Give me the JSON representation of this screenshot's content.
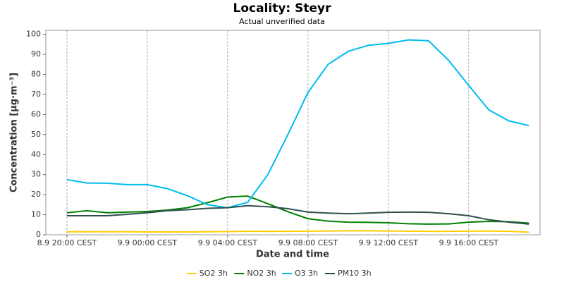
{
  "chart_data": {
    "type": "line",
    "title": "Locality: Steyr",
    "subtitle": "Actual unverified data",
    "x_label": "Date and time",
    "y_label": "Concentration [µg·m⁻³]",
    "x": [
      0,
      1,
      2,
      3,
      4,
      5,
      6,
      7,
      8,
      9,
      10,
      11,
      12,
      13,
      14,
      15,
      16,
      17,
      18,
      19,
      20,
      21,
      22,
      23
    ],
    "xlim": [
      -1.05,
      23.55
    ],
    "xticks": [
      {
        "value": 0,
        "label": "8.9 20:00 CEST"
      },
      {
        "value": 4,
        "label": "9.9 00:00 CEST"
      },
      {
        "value": 8,
        "label": "9.9 04:00 CEST"
      },
      {
        "value": 12,
        "label": "9.9 08:00 CEST"
      },
      {
        "value": 16,
        "label": "9.9 12:00 CEST"
      },
      {
        "value": 20,
        "label": "9.9 16:00 CEST"
      }
    ],
    "ylim": [
      0,
      102
    ],
    "yticks": [
      0,
      10,
      20,
      30,
      40,
      50,
      60,
      70,
      80,
      90,
      100
    ],
    "grid": "x",
    "legend": "bottom",
    "series": [
      {
        "name": "SO2 3h",
        "color": "#ffcc00",
        "values": [
          1.5,
          1.5,
          1.5,
          1.5,
          1.4,
          1.4,
          1.4,
          1.5,
          1.6,
          1.7,
          1.7,
          1.7,
          1.8,
          1.9,
          2,
          2,
          1.9,
          1.8,
          1.7,
          1.7,
          1.8,
          1.9,
          1.7,
          1.3
        ]
      },
      {
        "name": "NO2 3h",
        "color": "#008000",
        "values": [
          11,
          12,
          11,
          11.3,
          11.6,
          12.3,
          13.5,
          16,
          18.8,
          19.3,
          15.5,
          11.5,
          8,
          6.8,
          6.3,
          6.2,
          6,
          5.5,
          5.3,
          5.4,
          6.3,
          6.7,
          6.5,
          5.8
        ]
      },
      {
        "name": "O3 3h",
        "color": "#00bbee",
        "values": [
          27.5,
          25.8,
          25.7,
          25,
          25,
          23,
          19.5,
          15,
          13.5,
          16.2,
          30,
          50,
          71,
          85,
          91.5,
          94.5,
          95.5,
          97.2,
          96.8,
          87,
          74.5,
          62.3,
          56.8,
          54.5
        ]
      },
      {
        "name": "PM10 3h",
        "color": "#2f4f4f",
        "values": [
          9.5,
          9.5,
          9.5,
          10.2,
          11,
          12,
          12.5,
          13.2,
          13.5,
          14.5,
          14,
          13,
          11.3,
          10.8,
          10.5,
          10.8,
          11.2,
          11.3,
          11.2,
          10.5,
          9.5,
          7.5,
          6.3,
          5.3
        ]
      }
    ]
  }
}
